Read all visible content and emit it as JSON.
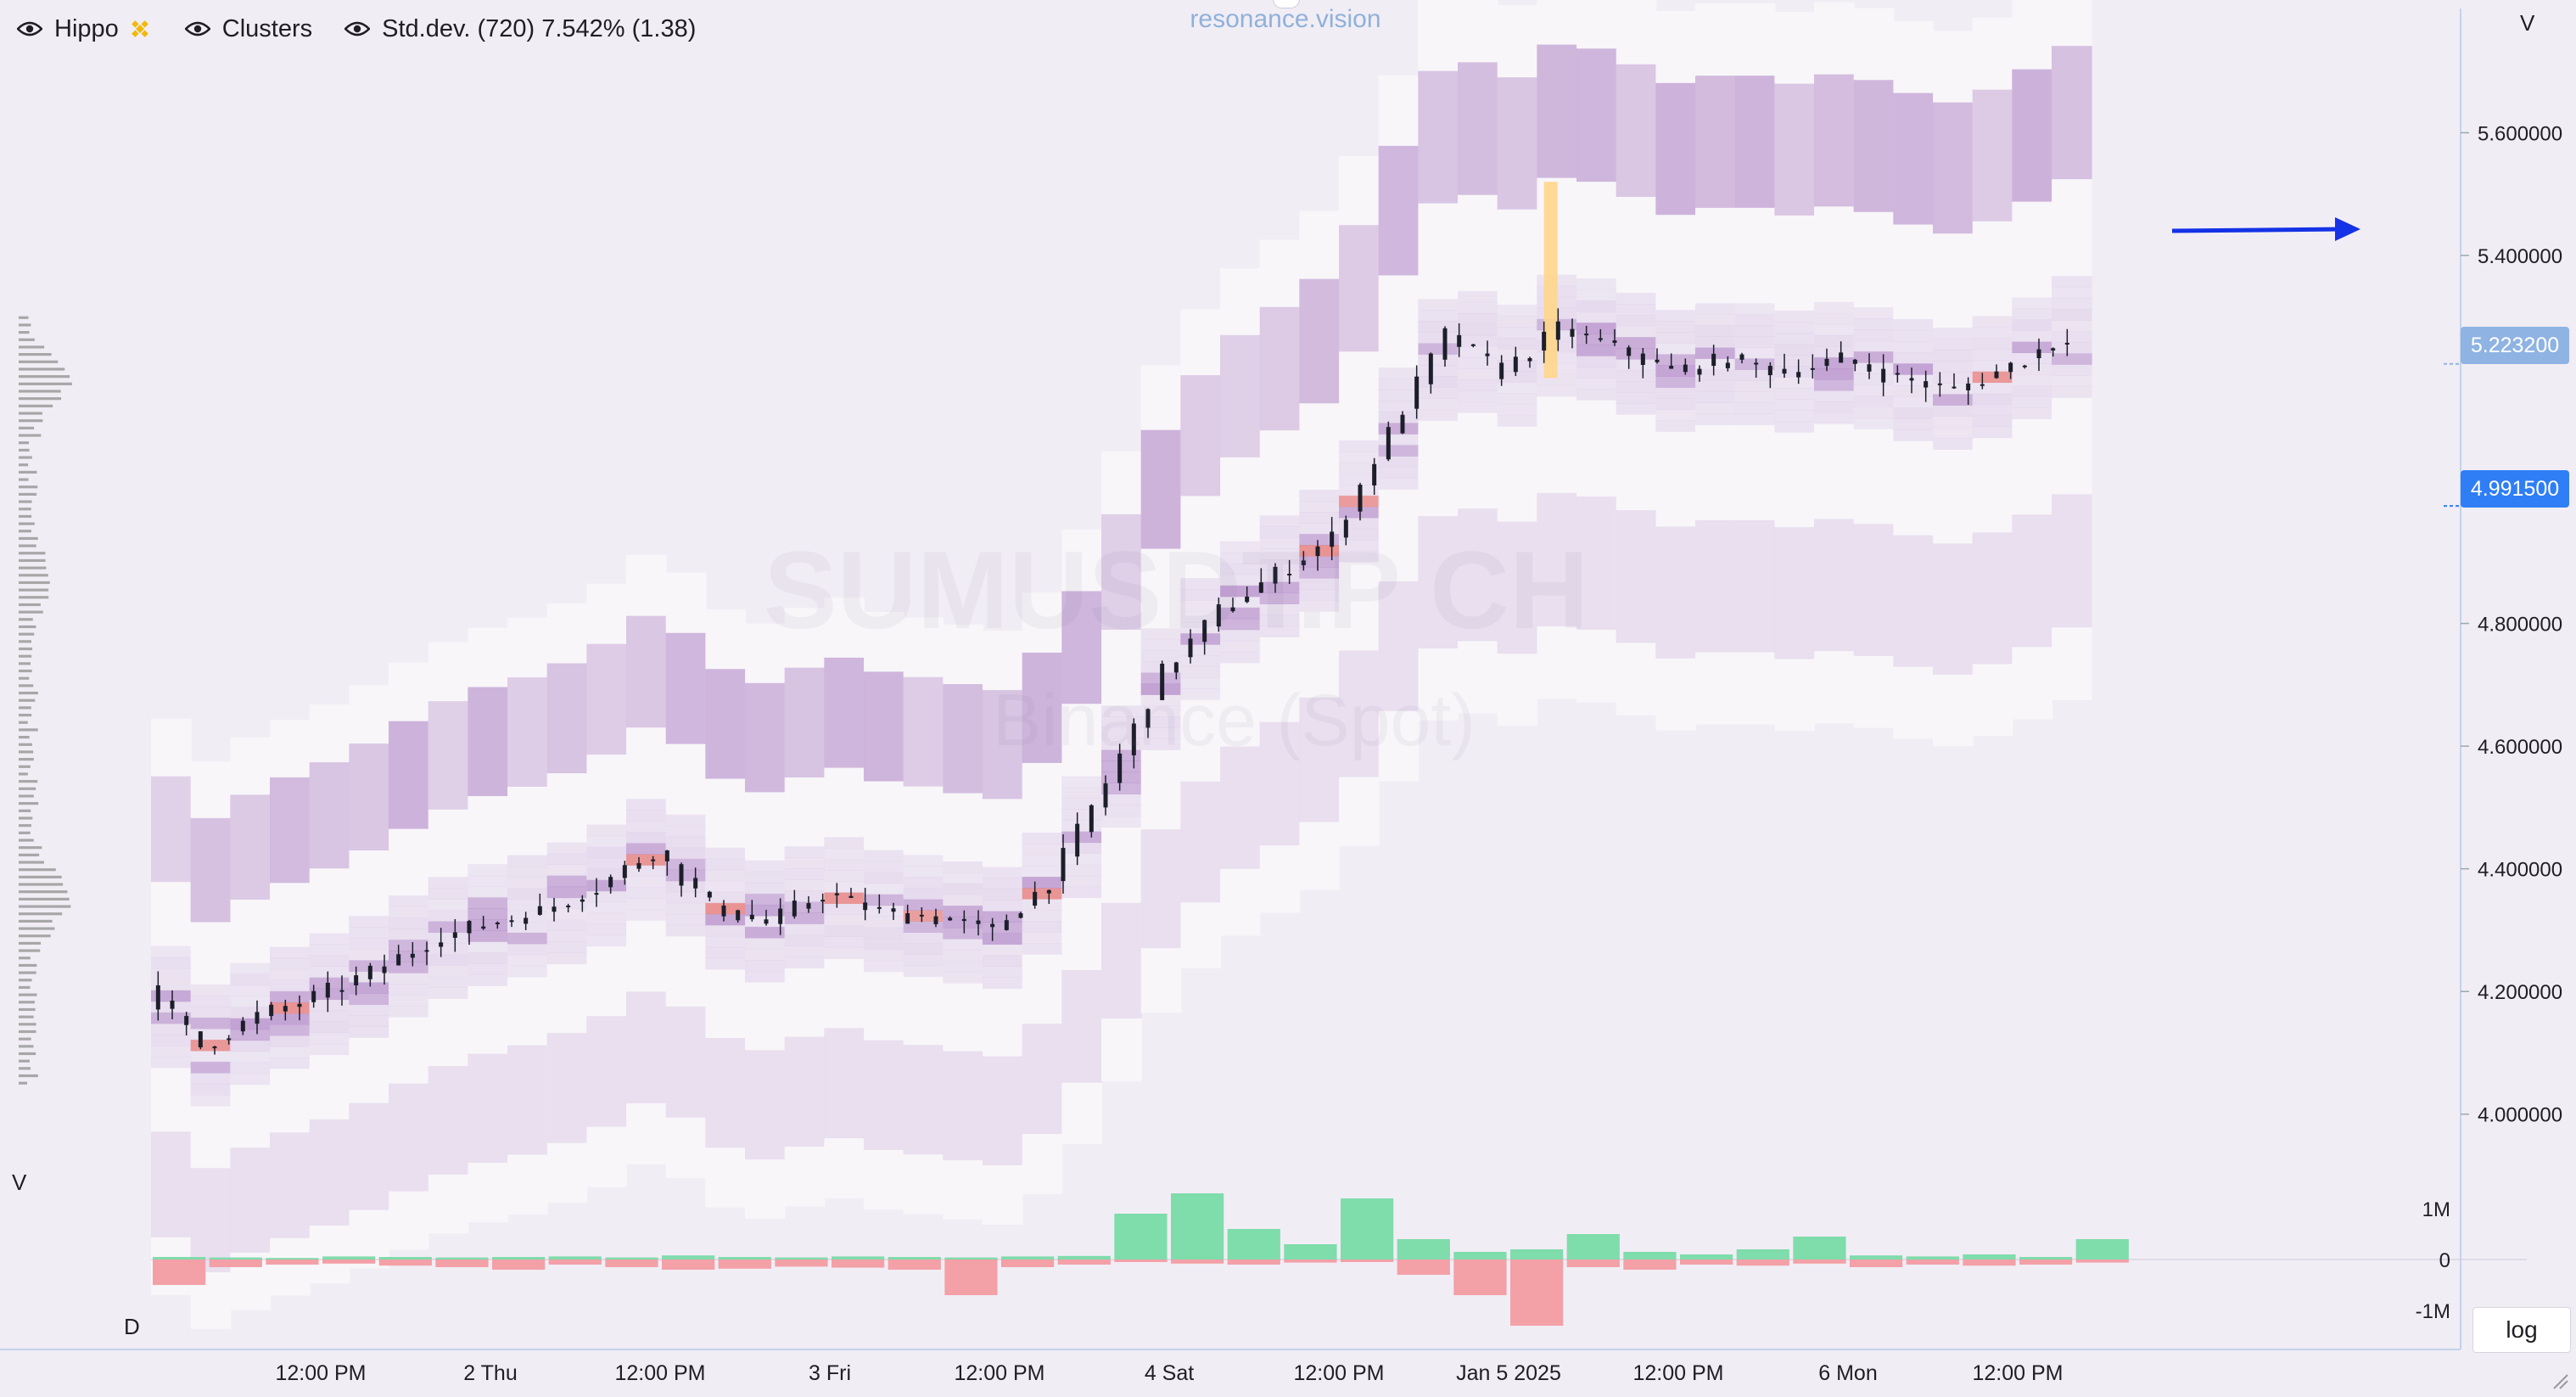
{
  "toolbar": {
    "items": [
      {
        "label": "Hippo"
      },
      {
        "label": "Clusters"
      },
      {
        "label": "Std.dev. (720) 7.542% (1.38)"
      }
    ]
  },
  "watermark": {
    "site": "resonance.vision",
    "symbol": "SUMUSDT.P CH",
    "exchange": "Binance (Spot)"
  },
  "axis": {
    "price_label": "V",
    "volume_label": "V",
    "delta_label": "D",
    "log_button": "log"
  },
  "price_tags": {
    "current": "5.223200",
    "marker": "4.991500"
  },
  "colors": {
    "background": "#f1edf5",
    "candle": "#1c1f2a",
    "cluster_low": "#d9c7e6",
    "cluster_mid": "#b48cc9",
    "cluster_high": "#e78b8b",
    "cluster_peak": "#ffd68a",
    "buy_volume": "#7fdcab",
    "sell_volume": "#f3a0a7",
    "arrow": "#1432e6",
    "tag_current": "#8fb3e3",
    "tag_marker": "#2f7ef5"
  },
  "chart_data": {
    "type": "candlestick-cluster",
    "title": "",
    "x_ticks": [
      "12:00 PM",
      "2 Thu",
      "12:00 PM",
      "3 Fri",
      "12:00 PM",
      "4 Sat",
      "12:00 PM",
      "Jan 5 2025",
      "12:00 PM",
      "6 Mon",
      "12:00 PM"
    ],
    "y_ticks": [
      "5.600000",
      "5.400000",
      "4.800000",
      "4.600000",
      "4.400000",
      "4.200000",
      "4.000000"
    ],
    "y_tick_values": [
      5.6,
      5.4,
      4.8,
      4.6,
      4.4,
      4.2,
      4.0
    ],
    "ylim": [
      3.9,
      5.75
    ],
    "volume_ticks": [
      "1M",
      "0",
      "-1M"
    ],
    "volume_tick_values": [
      1,
      0,
      -1
    ],
    "volume_ylim": [
      -1.4,
      1.4
    ],
    "xlim": [
      0,
      168
    ],
    "x_tick_positions": [
      12,
      24,
      36,
      48,
      60,
      72,
      84,
      96,
      108,
      120,
      132
    ],
    "price_series": {
      "x": [
        0,
        4,
        8,
        12,
        16,
        20,
        24,
        28,
        32,
        36,
        40,
        44,
        48,
        52,
        56,
        60,
        64,
        68,
        72,
        76,
        80,
        84,
        88,
        92,
        96,
        100,
        104,
        108,
        112,
        116,
        120,
        124,
        128,
        132,
        136
      ],
      "close": [
        4.21,
        4.11,
        4.16,
        4.19,
        4.23,
        4.28,
        4.31,
        4.33,
        4.37,
        4.43,
        4.34,
        4.31,
        4.36,
        4.33,
        4.32,
        4.3,
        4.38,
        4.54,
        4.72,
        4.82,
        4.88,
        4.94,
        5.11,
        5.27,
        5.21,
        5.28,
        5.25,
        5.21,
        5.23,
        5.21,
        5.23,
        5.2,
        5.18,
        5.22,
        5.27
      ]
    },
    "volume_buy": [
      0.05,
      0.04,
      0.03,
      0.06,
      0.05,
      0.04,
      0.05,
      0.06,
      0.04,
      0.08,
      0.05,
      0.04,
      0.06,
      0.05,
      0.04,
      0.06,
      0.07,
      0.9,
      1.3,
      0.6,
      0.3,
      1.2,
      0.4,
      0.15,
      0.2,
      0.5,
      0.15,
      0.1,
      0.2,
      0.45,
      0.08,
      0.06,
      0.1,
      0.05,
      0.4
    ],
    "volume_sell": [
      0.5,
      0.15,
      0.1,
      0.08,
      0.12,
      0.15,
      0.2,
      0.1,
      0.15,
      0.2,
      0.18,
      0.14,
      0.16,
      0.2,
      0.7,
      0.15,
      0.1,
      0.05,
      0.08,
      0.1,
      0.06,
      0.05,
      0.3,
      0.7,
      1.3,
      0.15,
      0.2,
      0.1,
      0.12,
      0.08,
      0.15,
      0.1,
      0.12,
      0.1,
      0.06
    ],
    "annotation": "arrow pointing right near 5.44",
    "grid": false,
    "legend": "none"
  }
}
